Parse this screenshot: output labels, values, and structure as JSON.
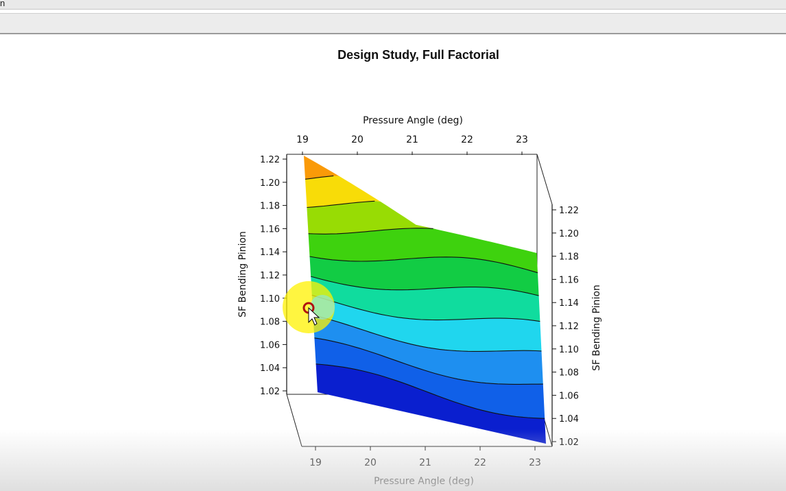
{
  "window": {
    "menu_fragment": "n"
  },
  "chart_data": {
    "type": "contour",
    "title": "Design Study, Full Factorial",
    "xlabel": "Pressure Angle (deg)",
    "ylabel": "SF Bending Pinion",
    "x_ticks": [
      "19",
      "20",
      "21",
      "22",
      "23"
    ],
    "y_ticks": [
      "1.22",
      "1.20",
      "1.18",
      "1.16",
      "1.14",
      "1.12",
      "1.10",
      "1.08",
      "1.06",
      "1.04",
      "1.02"
    ],
    "y_ticks_right": [
      "1.22",
      "1.20",
      "1.18",
      "1.16",
      "1.14",
      "1.12",
      "1.10",
      "1.08",
      "1.06",
      "1.04",
      "1.02"
    ],
    "xlim": [
      19,
      23
    ],
    "ylim": [
      1.02,
      1.22
    ],
    "surface_corners": [
      {
        "x": 19,
        "y": 1.22
      },
      {
        "x": 20.9,
        "y": 1.168
      },
      {
        "x": 23,
        "y": 1.154
      },
      {
        "x": 23,
        "y": 1.02
      },
      {
        "x": 19.3,
        "y": 1.02
      }
    ],
    "levels": [
      1.02,
      1.04,
      1.06,
      1.08,
      1.1,
      1.12,
      1.14,
      1.16,
      1.18,
      1.2,
      1.22
    ],
    "band_colors": [
      "#0a1fcf",
      "#1060e8",
      "#1e8ff0",
      "#20d6ee",
      "#10dc9e",
      "#12cc44",
      "#3ed20e",
      "#98dc04",
      "#f8dc08",
      "#fa9a08",
      "#f06010",
      "#e82010",
      "#c01a10"
    ],
    "grid": false,
    "legend": "none"
  }
}
